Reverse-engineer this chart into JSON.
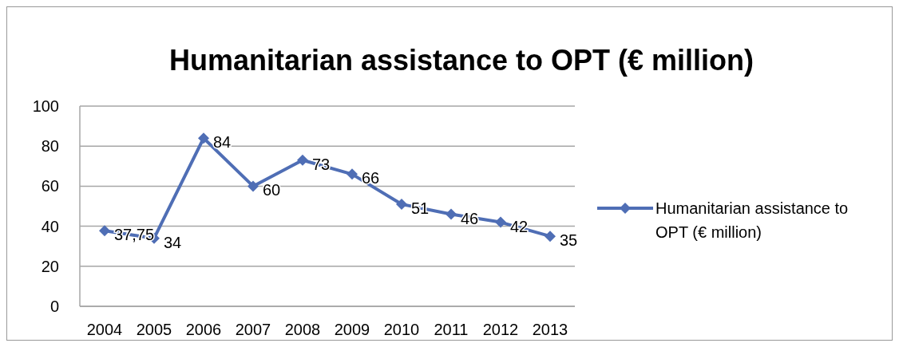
{
  "chart_data": {
    "type": "line",
    "title": "Humanitarian assistance to OPT (€ million)",
    "categories": [
      "2004",
      "2005",
      "2006",
      "2007",
      "2008",
      "2009",
      "2010",
      "2011",
      "2012",
      "2013"
    ],
    "series": [
      {
        "name": "Humanitarian assistance to OPT (€ million)",
        "color": "#4f6eb5",
        "values": [
          37.75,
          34,
          84,
          60,
          73,
          66,
          51,
          46,
          42,
          35
        ],
        "value_labels": [
          "37,75",
          "34",
          "84",
          "60",
          "73",
          "66",
          "51",
          "46",
          "42",
          "35"
        ]
      }
    ],
    "ylim": [
      0,
      100
    ],
    "yticks": [
      0,
      20,
      40,
      60,
      80,
      100
    ],
    "grid": "y",
    "legend": "right",
    "marker": "diamond",
    "line_style": "solid"
  }
}
